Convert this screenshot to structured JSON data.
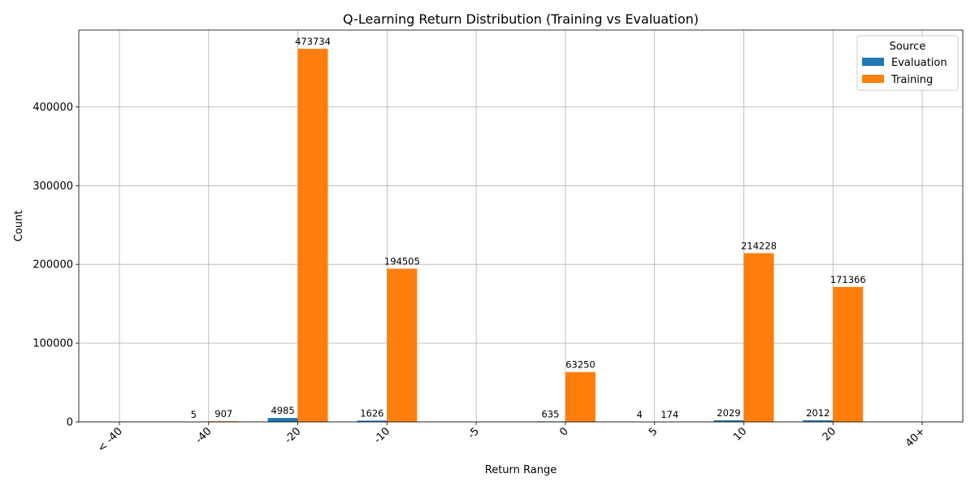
{
  "chart_data": {
    "type": "bar",
    "title": "Q-Learning Return Distribution (Training vs Evaluation)",
    "xlabel": "Return Range",
    "ylabel": "Count",
    "categories": [
      "< -40",
      "-40",
      "-20",
      "-10",
      "-5",
      "0",
      "5",
      "10",
      "20",
      "40+"
    ],
    "series": [
      {
        "name": "Evaluation",
        "color": "#1f77b4",
        "values": [
          0,
          5,
          4985,
          1626,
          0,
          635,
          4,
          2029,
          2012,
          0
        ],
        "labels": [
          "",
          "5",
          "4985",
          "1626",
          "",
          "635",
          "4",
          "2029",
          "2012",
          ""
        ]
      },
      {
        "name": "Training",
        "color": "#ff7f0e",
        "values": [
          0,
          907,
          473734,
          194505,
          0,
          63250,
          174,
          214228,
          171366,
          0
        ],
        "labels": [
          "",
          "907",
          "473734",
          "194505",
          "",
          "63250",
          "174",
          "214228",
          "171366",
          ""
        ]
      }
    ],
    "ylim": [
      0,
      497420
    ],
    "yticks": [
      0,
      100000,
      200000,
      300000,
      400000
    ],
    "grid": true,
    "legend": {
      "title": "Source",
      "location": "top-right"
    }
  }
}
